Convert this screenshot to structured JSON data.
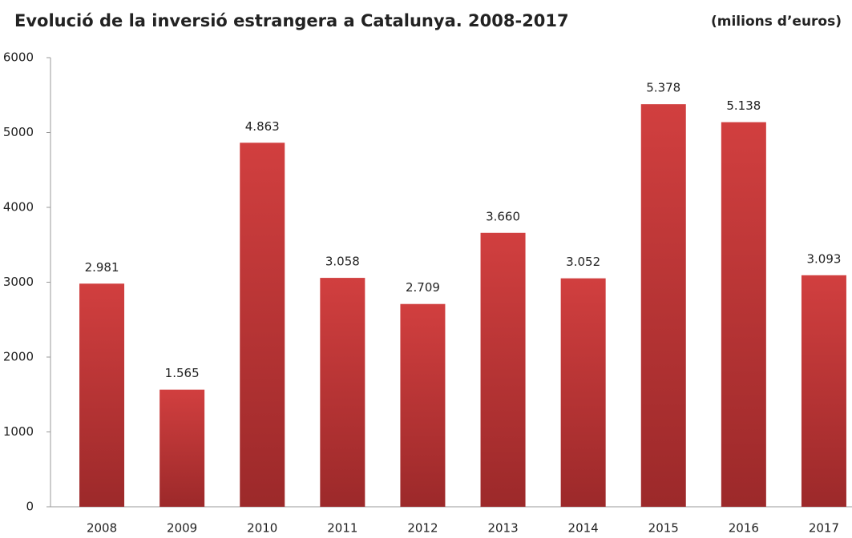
{
  "chart_data": {
    "type": "bar",
    "title": "Evolució de la inversió estrangera a Catalunya. 2008-2017",
    "subtitle": "(milions d’euros)",
    "categories": [
      "2008",
      "2009",
      "2010",
      "2011",
      "2012",
      "2013",
      "2014",
      "2015",
      "2016",
      "2017"
    ],
    "values": [
      2981,
      1565,
      4863,
      3058,
      2709,
      3660,
      3052,
      5378,
      5138,
      3093
    ],
    "value_labels": [
      "2.981",
      "1.565",
      "4.863",
      "3.058",
      "2.709",
      "3.660",
      "3.052",
      "5.378",
      "5.138",
      "3.093"
    ],
    "color": "#d13f3f",
    "ylim": [
      0,
      6000
    ],
    "yticks": [
      0,
      1000,
      2000,
      3000,
      4000,
      5000,
      6000
    ],
    "grid": false
  }
}
